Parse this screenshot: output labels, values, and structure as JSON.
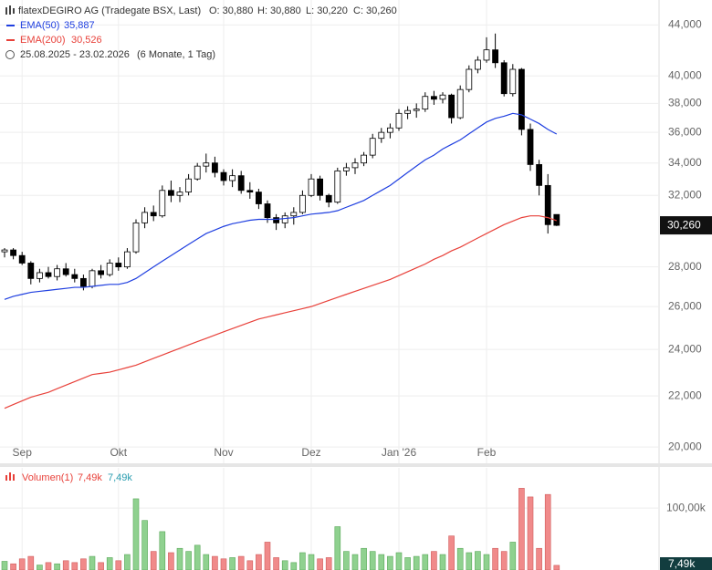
{
  "chart_data": [
    {
      "type": "candlestick",
      "title": "flatexDEGIRO AG (Tradegate BSX, Last)",
      "ohlc_labels": [
        "O: 30,880",
        "H: 30,880",
        "L: 30,220",
        "C: 30,260"
      ],
      "date_range": "25.08.2025 - 23.02.2026",
      "period": "(6 Monate, 1 Tag)",
      "categories": [
        null,
        null,
        "Sep",
        null,
        null,
        null,
        null,
        null,
        null,
        null,
        null,
        null,
        null,
        "Okt",
        null,
        null,
        null,
        null,
        null,
        null,
        null,
        null,
        null,
        null,
        null,
        "Nov",
        null,
        null,
        null,
        null,
        null,
        null,
        null,
        null,
        null,
        "Dez",
        null,
        null,
        null,
        null,
        null,
        null,
        null,
        null,
        null,
        "Jan '26",
        null,
        null,
        null,
        null,
        null,
        null,
        null,
        null,
        null,
        "Feb",
        null,
        null,
        null,
        null,
        null,
        null,
        null,
        null
      ],
      "open": [
        28.8,
        28.9,
        28.6,
        28.2,
        27.4,
        27.7,
        27.5,
        27.9,
        27.6,
        27.4,
        27.0,
        27.8,
        27.6,
        28.2,
        28.0,
        28.8,
        30.4,
        31.0,
        30.8,
        32.3,
        32.0,
        32.2,
        33.0,
        33.8,
        34.0,
        33.4,
        32.9,
        33.2,
        32.3,
        32.2,
        31.5,
        30.7,
        30.4,
        30.8,
        31.0,
        32.0,
        33.0,
        32.0,
        31.6,
        33.5,
        33.7,
        34.0,
        34.5,
        35.6,
        36.0,
        36.3,
        37.3,
        37.5,
        37.6,
        38.5,
        38.3,
        38.6,
        37.0,
        39.0,
        40.5,
        41.2,
        42.0,
        41.0,
        38.7,
        40.5,
        36.2,
        33.9,
        32.6,
        30.88
      ],
      "high": [
        29.0,
        29.0,
        28.8,
        28.3,
        27.9,
        28.0,
        28.1,
        28.2,
        27.9,
        27.6,
        27.9,
        28.1,
        28.4,
        28.5,
        29.0,
        30.6,
        31.3,
        31.4,
        32.6,
        32.9,
        32.5,
        33.3,
        34.0,
        34.6,
        34.4,
        33.6,
        33.6,
        33.5,
        32.8,
        32.4,
        31.7,
        30.9,
        31.0,
        31.3,
        32.3,
        33.3,
        33.2,
        32.1,
        33.7,
        34.0,
        34.3,
        34.7,
        35.9,
        36.3,
        36.6,
        37.6,
        37.8,
        38.0,
        38.8,
        38.9,
        38.8,
        38.7,
        39.3,
        40.8,
        41.5,
        43.0,
        43.3,
        41.2,
        40.9,
        40.6,
        36.6,
        34.2,
        33.3,
        30.88
      ],
      "low": [
        28.5,
        28.4,
        28.1,
        27.1,
        27.2,
        27.4,
        27.3,
        27.5,
        27.2,
        26.8,
        26.9,
        27.4,
        27.5,
        27.8,
        27.9,
        28.7,
        30.1,
        30.5,
        30.7,
        31.6,
        31.6,
        32.0,
        32.9,
        33.4,
        33.1,
        32.6,
        32.5,
        32.1,
        31.8,
        31.2,
        30.4,
        30.0,
        30.1,
        30.3,
        30.9,
        31.9,
        31.7,
        31.3,
        31.5,
        33.2,
        33.3,
        33.8,
        34.3,
        35.3,
        35.6,
        36.1,
        36.9,
        37.0,
        37.4,
        37.9,
        38.0,
        36.6,
        36.9,
        38.8,
        40.2,
        41.0,
        40.6,
        38.5,
        38.5,
        35.8,
        33.5,
        32.0,
        29.8,
        30.22
      ],
      "close": [
        28.9,
        28.6,
        28.2,
        27.4,
        27.7,
        27.5,
        27.9,
        27.6,
        27.4,
        27.0,
        27.8,
        27.6,
        28.2,
        28.0,
        28.8,
        30.4,
        31.0,
        30.8,
        32.3,
        32.0,
        32.2,
        33.0,
        33.8,
        34.0,
        33.4,
        32.9,
        33.2,
        32.3,
        32.2,
        31.5,
        30.7,
        30.4,
        30.8,
        31.0,
        32.0,
        33.0,
        32.0,
        31.6,
        33.5,
        33.7,
        34.0,
        34.5,
        35.6,
        36.0,
        36.3,
        37.3,
        37.5,
        37.6,
        38.5,
        38.3,
        38.6,
        37.0,
        39.0,
        40.5,
        41.2,
        42.0,
        41.0,
        38.7,
        40.5,
        36.2,
        33.9,
        32.6,
        30.3,
        30.26
      ],
      "up_color": "#ffffff",
      "down_color": "#000000",
      "series": [
        {
          "name": "EMA(50)",
          "value_label": "35,887",
          "color": "#1f3fe0",
          "values": [
            26.35,
            26.5,
            26.6,
            26.7,
            26.75,
            26.8,
            26.85,
            26.9,
            26.95,
            26.95,
            27.0,
            27.05,
            27.1,
            27.1,
            27.2,
            27.4,
            27.7,
            28.0,
            28.3,
            28.6,
            28.9,
            29.2,
            29.5,
            29.8,
            30.0,
            30.2,
            30.35,
            30.45,
            30.55,
            30.6,
            30.6,
            30.6,
            30.65,
            30.7,
            30.8,
            30.9,
            30.95,
            31.0,
            31.1,
            31.3,
            31.5,
            31.7,
            32.0,
            32.3,
            32.6,
            33.0,
            33.4,
            33.8,
            34.2,
            34.5,
            34.9,
            35.2,
            35.5,
            35.9,
            36.3,
            36.7,
            36.95,
            37.1,
            37.3,
            37.2,
            36.9,
            36.6,
            36.2,
            35.887
          ]
        },
        {
          "name": "EMA(200)",
          "value_label": "30,526",
          "color": "#e8413a",
          "values": [
            21.5,
            21.65,
            21.8,
            21.95,
            22.05,
            22.15,
            22.3,
            22.45,
            22.6,
            22.75,
            22.9,
            22.95,
            23.0,
            23.1,
            23.2,
            23.3,
            23.45,
            23.6,
            23.75,
            23.9,
            24.05,
            24.2,
            24.35,
            24.5,
            24.65,
            24.8,
            24.95,
            25.1,
            25.25,
            25.4,
            25.5,
            25.6,
            25.7,
            25.8,
            25.9,
            26.0,
            26.15,
            26.3,
            26.45,
            26.6,
            26.75,
            26.9,
            27.05,
            27.2,
            27.35,
            27.55,
            27.75,
            27.95,
            28.15,
            28.4,
            28.6,
            28.85,
            29.05,
            29.3,
            29.55,
            29.8,
            30.05,
            30.3,
            30.5,
            30.7,
            30.8,
            30.8,
            30.7,
            30.526
          ]
        }
      ],
      "ylim": [
        19.4,
        46.1
      ],
      "log_scale": true,
      "grid": true,
      "yticks": [
        {
          "value": 20,
          "label": "20,000"
        },
        {
          "value": 22,
          "label": "22,000"
        },
        {
          "value": 24,
          "label": "24,000"
        },
        {
          "value": 26,
          "label": "26,000"
        },
        {
          "value": 28,
          "label": "28,000"
        },
        {
          "value": 32,
          "label": "32,000"
        },
        {
          "value": 34,
          "label": "34,000"
        },
        {
          "value": 36,
          "label": "36,000"
        },
        {
          "value": 38,
          "label": "38,000"
        },
        {
          "value": 40,
          "label": "40,000"
        },
        {
          "value": 44,
          "label": "44,000"
        }
      ],
      "last_label": "30,260"
    },
    {
      "type": "bar",
      "title": "Volumen(1)",
      "legend_values": [
        "7,49k",
        "7,49k"
      ],
      "values": [
        14,
        10,
        18,
        22,
        8,
        12,
        10,
        15,
        12,
        18,
        22,
        12,
        20,
        15,
        25,
        115,
        80,
        30,
        62,
        28,
        35,
        30,
        40,
        25,
        22,
        18,
        20,
        22,
        15,
        25,
        45,
        20,
        15,
        12,
        28,
        25,
        18,
        20,
        70,
        30,
        25,
        35,
        30,
        25,
        22,
        28,
        20,
        22,
        25,
        30,
        25,
        55,
        35,
        28,
        30,
        25,
        35,
        30,
        45,
        132,
        118,
        35,
        122,
        7.49
      ],
      "up_color": "#8fd18f",
      "down_color": "#f08a8a",
      "ylim": [
        0,
        165
      ],
      "yticks": [
        {
          "value": 100,
          "label": "100,00k"
        }
      ],
      "grid": true,
      "last_label": "7,49k"
    }
  ]
}
